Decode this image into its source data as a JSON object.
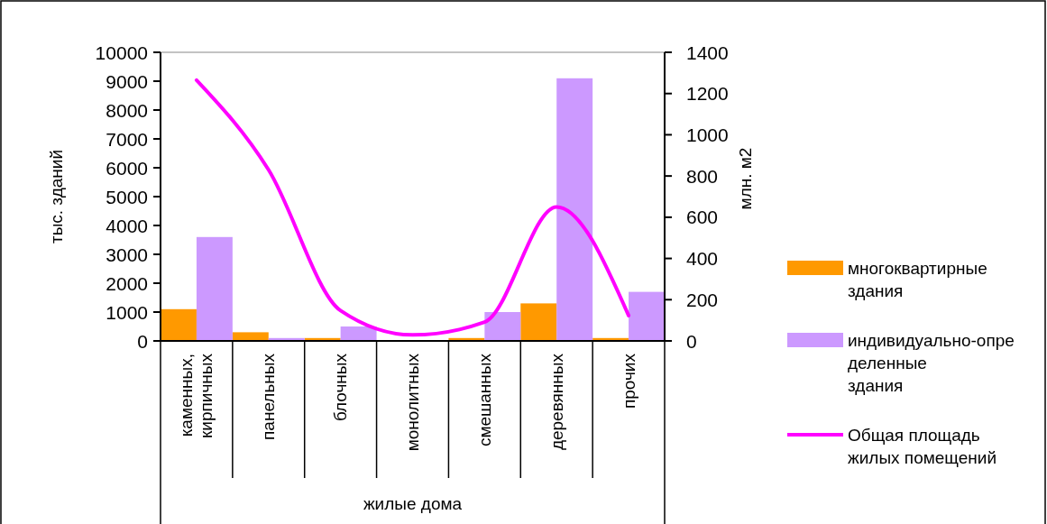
{
  "chart_data": {
    "type": "bar",
    "xlabel": "жилые дома",
    "ylabel": "тыс. зданий",
    "y2label": "млн. м2",
    "categories": [
      "каменных, кирпичных",
      "панельных",
      "блочных",
      "монолитных",
      "смешанных",
      "деревянных",
      "прочих"
    ],
    "series": [
      {
        "name": "многоквартирные здания",
        "color": "#ff9900",
        "values": [
          1100,
          300,
          100,
          null,
          100,
          1300,
          100
        ]
      },
      {
        "name": "индивидуально-определенные здания",
        "color": "#cc99ff",
        "values": [
          3600,
          100,
          500,
          null,
          1000,
          9100,
          1700
        ]
      },
      {
        "name": "Общая площадь жилых помещений",
        "type": "line",
        "axis": "y2",
        "color": "#ff00ff",
        "values": [
          1265,
          830,
          147,
          29,
          91,
          650,
          123
        ]
      }
    ],
    "ylim": [
      0,
      10000
    ],
    "yticks": [
      0,
      1000,
      2000,
      3000,
      4000,
      5000,
      6000,
      7000,
      8000,
      9000,
      10000
    ],
    "y2lim": [
      0,
      1400
    ],
    "y2ticks": [
      0,
      200,
      400,
      600,
      800,
      1000,
      1200,
      1400
    ],
    "legend": "right",
    "marker": "none"
  }
}
